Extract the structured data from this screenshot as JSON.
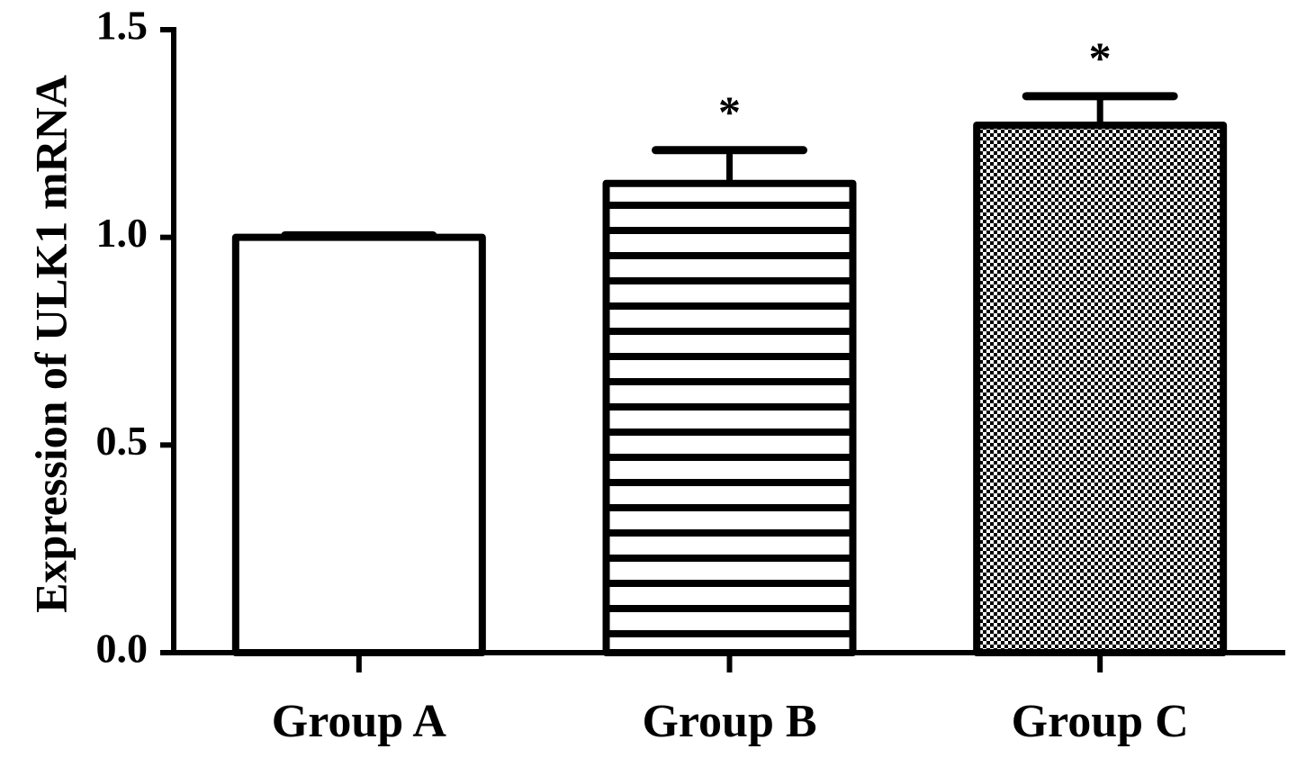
{
  "chart_data": {
    "type": "bar",
    "title": "",
    "xlabel": "",
    "ylabel": "Expression of ULK1 mRNA",
    "ylim": [
      0,
      1.5
    ],
    "yticks": [
      "0.0",
      "0.5",
      "1.0",
      "1.5"
    ],
    "categories": [
      "Group A",
      "Group B",
      "Group C"
    ],
    "values": [
      1.0,
      1.13,
      1.27
    ],
    "error_upper": [
      0.005,
      0.08,
      0.07
    ],
    "significance": [
      "",
      "*",
      "*"
    ],
    "patterns": [
      "none",
      "horizontal-stripes",
      "checkerboard"
    ],
    "colors": {
      "stroke": "#000000",
      "fill": "#ffffff"
    },
    "grid": false,
    "legend": "none"
  }
}
